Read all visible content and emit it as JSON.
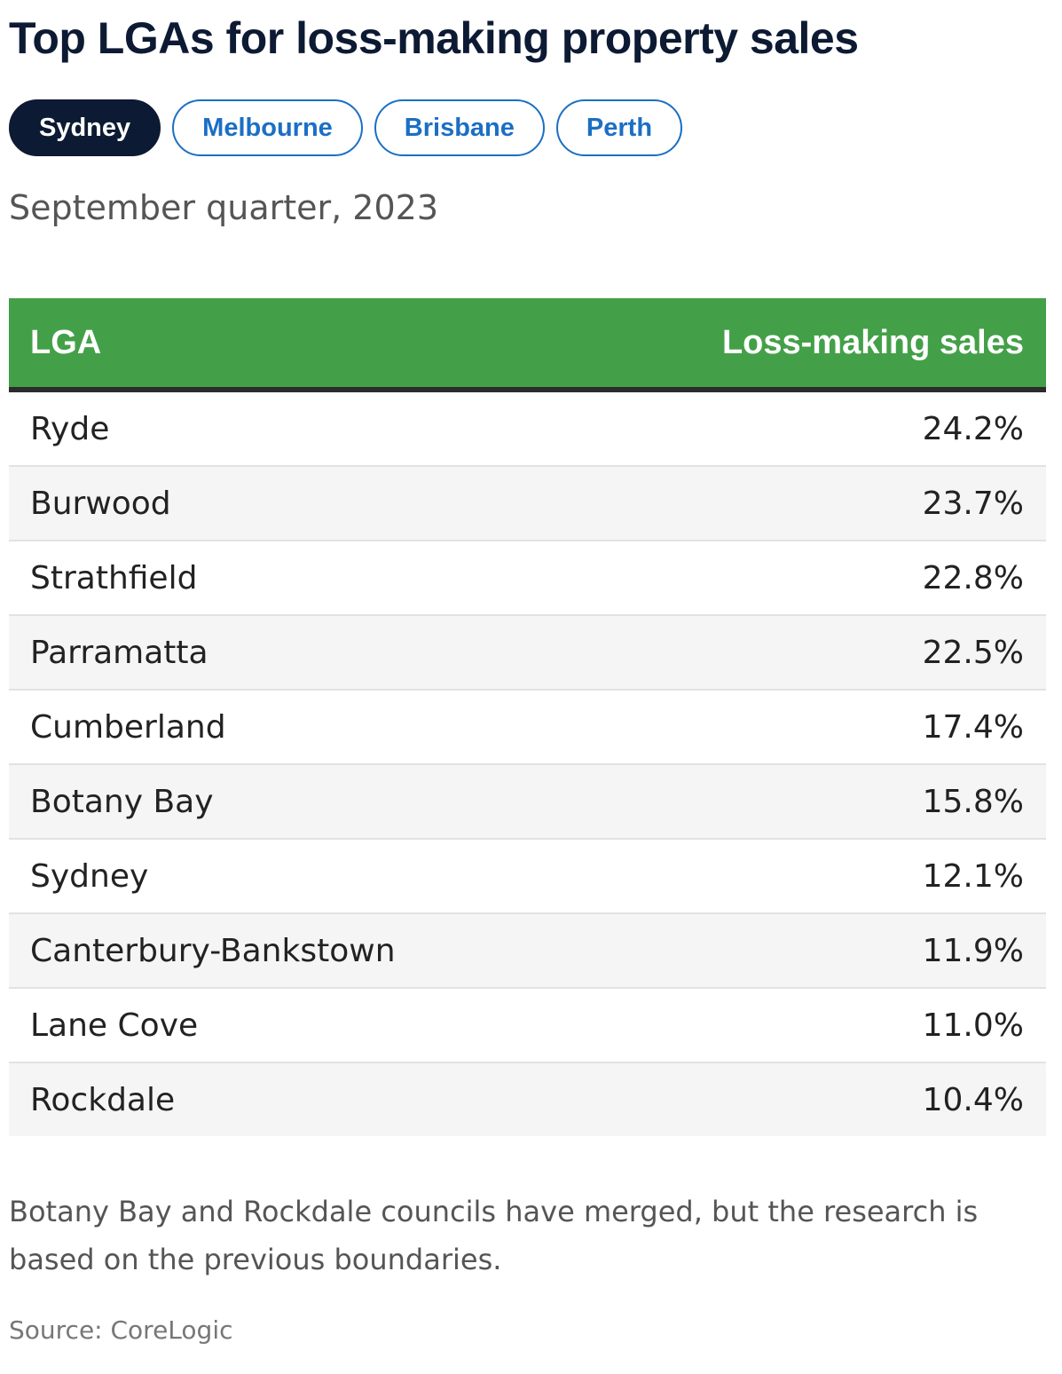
{
  "title": "Top LGAs for loss-making property sales",
  "tabs": [
    {
      "label": "Sydney",
      "active": true
    },
    {
      "label": "Melbourne",
      "active": false
    },
    {
      "label": "Brisbane",
      "active": false
    },
    {
      "label": "Perth",
      "active": false
    }
  ],
  "subtitle": "September quarter, 2023",
  "chart_data": {
    "type": "table",
    "columns": [
      "LGA",
      "Loss-making sales"
    ],
    "rows": [
      {
        "lga": "Ryde",
        "value": "24.2%"
      },
      {
        "lga": "Burwood",
        "value": "23.7%"
      },
      {
        "lga": "Strathfield",
        "value": "22.8%"
      },
      {
        "lga": "Parramatta",
        "value": "22.5%"
      },
      {
        "lga": "Cumberland",
        "value": "17.4%"
      },
      {
        "lga": "Botany Bay",
        "value": "15.8%"
      },
      {
        "lga": "Sydney",
        "value": "12.1%"
      },
      {
        "lga": "Canterbury-Bankstown",
        "value": "11.9%"
      },
      {
        "lga": "Lane Cove",
        "value": "11.0%"
      },
      {
        "lga": "Rockdale",
        "value": "10.4%"
      }
    ]
  },
  "note": "Botany Bay and Rockdale councils have merged, but the research is based on the previous boundaries.",
  "source": "Source: CoreLogic",
  "colors": {
    "header_bg": "#44a048",
    "active_tab": "#0d1a33",
    "tab_accent": "#1b6fc4"
  }
}
